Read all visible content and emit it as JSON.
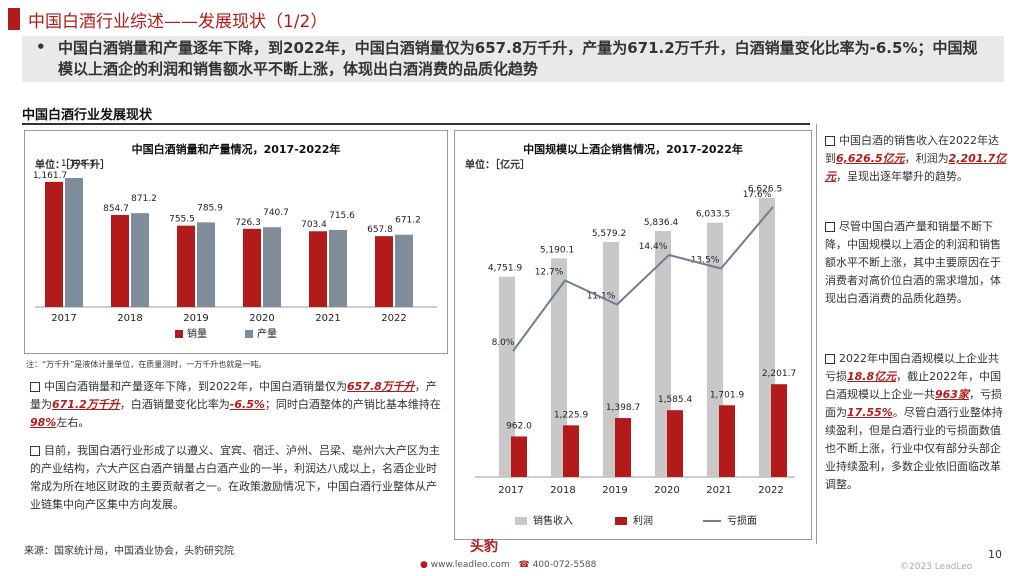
{
  "header": {
    "title": "中国白酒行业综述——发展现状（1/2）",
    "summary": "中国白酒销量和产量逐年下降，到2022年，中国白酒销量仅为657.8万千升，产量为671.2万千升，白酒销量变化比率为-6.5%；中国规模以上酒企的利润和销售额水平不断上涨，体现出白酒消费的品质化趋势",
    "bullet": "•"
  },
  "section": {
    "title": "中国白酒行业发展现状"
  },
  "left_chart": {
    "title": "中国白酒销量和产量情况，2017-2022年",
    "unit": "单位：［万千升］",
    "legend_sales": "销量",
    "legend_output": "产量",
    "note": "注：“万千升”是液体计量单位，在质量测时，一万千升也就是一吨。"
  },
  "right_chart": {
    "title": "中国规模以上酒企销售情况，2017-2022年",
    "unit": "单位：［亿元］",
    "legend_revenue": "销售收入",
    "legend_profit": "利润",
    "legend_loss": "亏损面"
  },
  "chart_data": [
    {
      "type": "bar",
      "title": "中国白酒销量和产量情况，2017-2022年",
      "categories": [
        "2017",
        "2018",
        "2019",
        "2020",
        "2021",
        "2022"
      ],
      "series": [
        {
          "name": "销量",
          "values": [
            1161.7,
            854.7,
            755.5,
            726.3,
            703.4,
            657.8
          ],
          "labels": [
            "1,161.7",
            "854.7",
            "755.5",
            "726.3",
            "703.4",
            "657.8"
          ],
          "color": "#b31b1b"
        },
        {
          "name": "产量",
          "values": [
            1198.1,
            871.2,
            785.9,
            740.7,
            715.6,
            671.2
          ],
          "labels": [
            "1,198.1",
            "871.2",
            "785.9",
            "740.7",
            "715.6",
            "671.2"
          ],
          "color": "#7f8c9a"
        }
      ]
    },
    {
      "type": "bar",
      "title": "中国规模以上酒企销售情况，2017-2022年",
      "categories": [
        "2017",
        "2018",
        "2019",
        "2020",
        "2021",
        "2022"
      ],
      "series": [
        {
          "name": "销售收入",
          "values": [
            4751.9,
            5190.1,
            5579.2,
            5836.4,
            6033.5,
            6626.5
          ],
          "labels": [
            "4,751.9",
            "5,190.1",
            "5,579.2",
            "5,836.4",
            "6,033.5",
            "6,626.5"
          ],
          "color": "#c8c8c8"
        },
        {
          "name": "利润",
          "values": [
            962.0,
            1225.9,
            1398.7,
            1585.4,
            1701.9,
            2201.7
          ],
          "labels": [
            "962.0",
            "1,225.9",
            "1,398.7",
            "1,585.4",
            "1,701.9",
            "2,201.7"
          ],
          "color": "#b31b1b"
        },
        {
          "name": "亏损面",
          "type": "line",
          "values": [
            8.0,
            12.7,
            11.1,
            14.4,
            13.5,
            17.6
          ],
          "labels": [
            "8.0%",
            "12.7%",
            "11.1%",
            "14.4%",
            "13.5%",
            "17.6%"
          ],
          "color": "#6f7f8f"
        }
      ]
    }
  ],
  "left_text": {
    "p1_a": "中国白酒销量和产量逐年下降，到2022年，中国白酒销量仅为",
    "p1_b": "657.8万千升",
    "p1_c": "，产量为",
    "p1_d": "671.2万千升",
    "p1_e": "，白酒销量变化比率为",
    "p1_f": "-6.5%",
    "p1_g": "；同时白酒整体的产销比基本维持在",
    "p1_h": "98%",
    "p1_i": "左右。",
    "p2": "目前，我国白酒行业形成了以遵义、宜宾、宿迁、泸州、吕梁、亳州六大产区为主的产业结构，六大产区白酒产销量占白酒产业的一半，利润达八成以上，名酒企业时常成为所在地区财政的主要贡献者之一。在政策激励情况下，中国白酒行业整体从产业链集中向产区集中方向发展。"
  },
  "right_text": {
    "p1_a": "中国白酒的销售收入在2022年达到",
    "p1_b": "6,626.5亿元",
    "p1_c": "，利润为",
    "p1_d": "2,201.7亿元",
    "p1_e": "，呈现出逐年攀升的趋势。",
    "p2": "尽管中国白酒产量和销量不断下降，中国规模以上酒企的利润和销售额水平不断上涨，其中主要原因在于消费者对高价位白酒的需求增加，体现出白酒消费的品质化趋势。",
    "p3_a": "2022年中国白酒规模以上企业共亏损",
    "p3_b": "18.8亿元",
    "p3_c": "，截止2022年，中国白酒规模以上企业一共",
    "p3_d": "963家",
    "p3_e": "，亏损面为",
    "p3_f": "17.55%",
    "p3_g": "。尽管白酒行业整体持续盈利，但是白酒行业的亏损面数值也不断上涨，行业中仅有部分头部企业持续盈利，多数企业依旧面临改革调整。"
  },
  "footer": {
    "source": "来源：国家统计局，中国酒业协会，头豹研究院",
    "logo": "头豹",
    "website": "www.leadleo.com",
    "phone": "400-072-5588",
    "page": "10",
    "copyright": "©2023 LeadLeo"
  }
}
